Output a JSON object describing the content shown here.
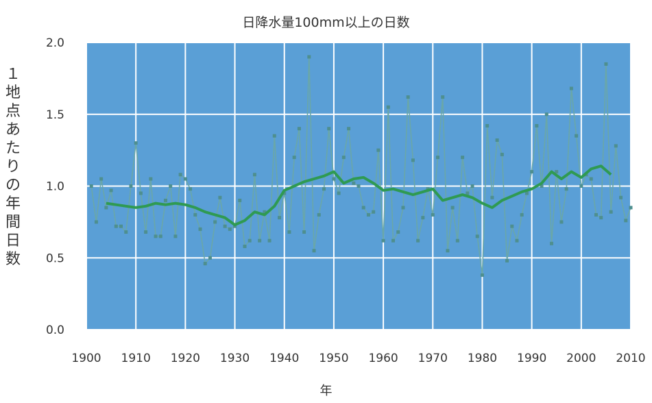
{
  "chart_data": {
    "type": "line",
    "title": "日降水量100mm以上の日数",
    "xlabel": "年",
    "ylabel": "１地点あたりの年間日数",
    "xlim": [
      1900,
      2010
    ],
    "ylim": [
      0.0,
      2.0
    ],
    "grid": true,
    "x_ticks": [
      "1900",
      "1910",
      "1920",
      "1930",
      "1940",
      "1950",
      "1960",
      "1970",
      "1980",
      "1990",
      "2000",
      "2010"
    ],
    "y_ticks": [
      "0.0",
      "0.5",
      "1.0",
      "1.5",
      "2.0"
    ],
    "series": [
      {
        "x": [
          1901,
          1902,
          1903,
          1904,
          1905,
          1906,
          1907,
          1908,
          1909,
          1910,
          1911,
          1912,
          1913,
          1914,
          1915,
          1916,
          1917,
          1918,
          1919,
          1920,
          1921,
          1922,
          1923,
          1924,
          1925,
          1926,
          1927,
          1928,
          1929,
          1930,
          1931,
          1932,
          1933,
          1934,
          1935,
          1936,
          1937,
          1938,
          1939,
          1940,
          1941,
          1942,
          1943,
          1944,
          1945,
          1946,
          1947,
          1948,
          1949,
          1950,
          1951,
          1952,
          1953,
          1954,
          1955,
          1956,
          1957,
          1958,
          1959,
          1960,
          1961,
          1962,
          1963,
          1964,
          1965,
          1966,
          1967,
          1968,
          1969,
          1970,
          1971,
          1972,
          1973,
          1974,
          1975,
          1976,
          1977,
          1978,
          1979,
          1980,
          1981,
          1982,
          1983,
          1984,
          1985,
          1986,
          1987,
          1988,
          1989,
          1990,
          1991,
          1992,
          1993,
          1994,
          1995,
          1996,
          1997,
          1998,
          1999,
          2000,
          2001,
          2002,
          2003,
          2004,
          2005,
          2006,
          2007,
          2008,
          2009,
          2010
        ],
        "values": [
          1.0,
          0.75,
          1.05,
          0.85,
          0.97,
          0.72,
          0.72,
          0.68,
          1.0,
          1.3,
          0.95,
          0.68,
          1.05,
          0.65,
          0.65,
          0.9,
          1.0,
          0.65,
          1.08,
          1.05,
          0.98,
          0.8,
          0.7,
          0.46,
          0.5,
          0.75,
          0.92,
          0.72,
          0.7,
          0.72,
          0.9,
          0.58,
          0.62,
          1.08,
          0.62,
          0.82,
          0.62,
          1.35,
          0.78,
          0.95,
          0.68,
          1.2,
          1.4,
          0.68,
          1.9,
          0.55,
          0.8,
          0.98,
          1.4,
          1.05,
          0.95,
          1.2,
          1.4,
          1.02,
          1.0,
          0.85,
          0.8,
          0.82,
          1.25,
          0.62,
          1.55,
          0.62,
          0.68,
          0.85,
          1.62,
          1.18,
          0.62,
          0.78,
          0.98,
          0.8,
          1.2,
          1.62,
          0.55,
          0.85,
          0.62,
          1.2,
          0.95,
          1.0,
          0.65,
          0.38,
          1.42,
          0.92,
          1.32,
          1.22,
          0.48,
          0.72,
          0.62,
          0.8,
          0.95,
          1.1,
          1.42,
          1.0,
          1.5,
          0.6,
          1.1,
          0.75,
          0.98,
          1.68,
          1.35,
          1.0,
          1.08,
          1.05,
          0.8,
          0.78,
          1.85,
          0.82,
          1.28,
          0.92,
          0.76,
          0.85
        ]
      },
      {
        "x": [
          1904,
          1906,
          1908,
          1910,
          1912,
          1914,
          1916,
          1918,
          1920,
          1922,
          1924,
          1926,
          1928,
          1930,
          1932,
          1934,
          1936,
          1938,
          1940,
          1942,
          1944,
          1946,
          1948,
          1950,
          1952,
          1954,
          1956,
          1958,
          1960,
          1962,
          1964,
          1966,
          1968,
          1970,
          1972,
          1974,
          1976,
          1978,
          1980,
          1982,
          1984,
          1986,
          1988,
          1990,
          1992,
          1994,
          1996,
          1998,
          2000,
          2002,
          2004,
          2006
        ],
        "values": [
          0.88,
          0.87,
          0.86,
          0.85,
          0.86,
          0.88,
          0.87,
          0.88,
          0.87,
          0.85,
          0.82,
          0.8,
          0.78,
          0.73,
          0.76,
          0.82,
          0.8,
          0.86,
          0.97,
          1.0,
          1.03,
          1.05,
          1.07,
          1.1,
          1.02,
          1.05,
          1.06,
          1.02,
          0.97,
          0.98,
          0.96,
          0.94,
          0.96,
          0.98,
          0.9,
          0.92,
          0.94,
          0.92,
          0.88,
          0.85,
          0.9,
          0.93,
          0.96,
          0.98,
          1.02,
          1.1,
          1.05,
          1.1,
          1.06,
          1.12,
          1.14,
          1.08
        ]
      }
    ],
    "colors": {
      "plot_background": "#5a9fd6",
      "grid": "#ffffff",
      "annual_line": "#6aa7a8",
      "annual_marker": "#4e8f8f",
      "trend_line": "#2f9a52"
    }
  }
}
